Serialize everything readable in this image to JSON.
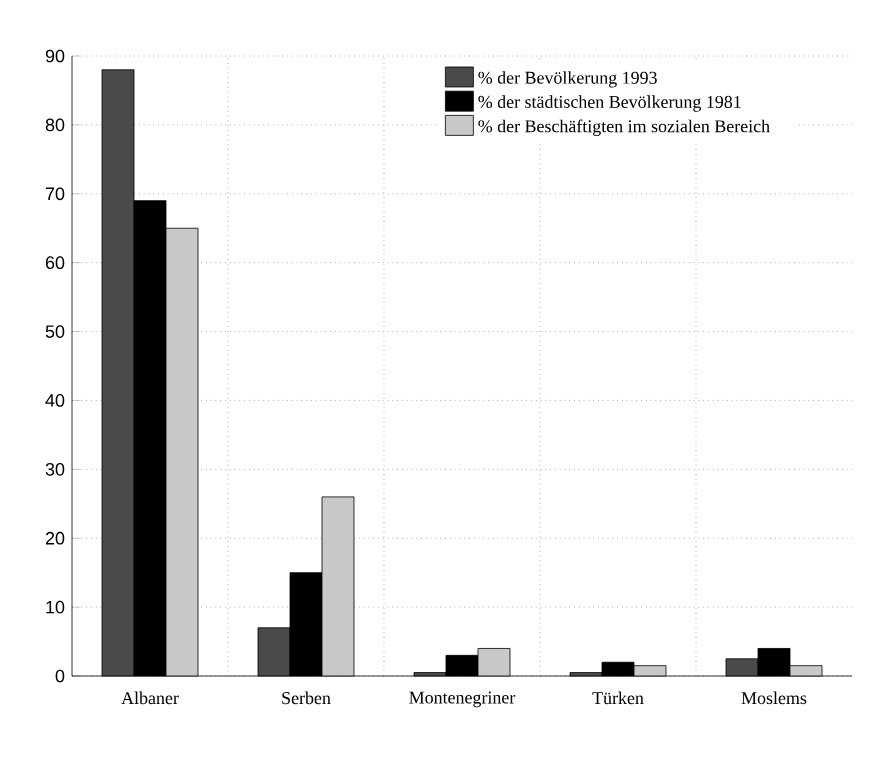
{
  "chart_data": {
    "type": "bar",
    "categories": [
      "Albaner",
      "Serben",
      "Montenegriner",
      "Türken",
      "Moslems"
    ],
    "series": [
      {
        "name": "% der Bevölkerung 1993",
        "color": "#4a4a4a",
        "values": [
          88,
          7,
          0.5,
          0.5,
          2.5
        ]
      },
      {
        "name": "% der städtischen Bevölkerung 1981",
        "color": "#000000",
        "values": [
          69,
          15,
          3,
          2,
          4
        ]
      },
      {
        "name": "% der Beschäftigten im sozialen Bereich",
        "color": "#c8c8c8",
        "values": [
          65,
          26,
          4,
          1.5,
          1.5
        ]
      }
    ],
    "ylim": [
      0,
      90
    ],
    "yticks": [
      0,
      10,
      20,
      30,
      40,
      50,
      60,
      70,
      80,
      90
    ],
    "grid": true,
    "legend": "top right"
  }
}
